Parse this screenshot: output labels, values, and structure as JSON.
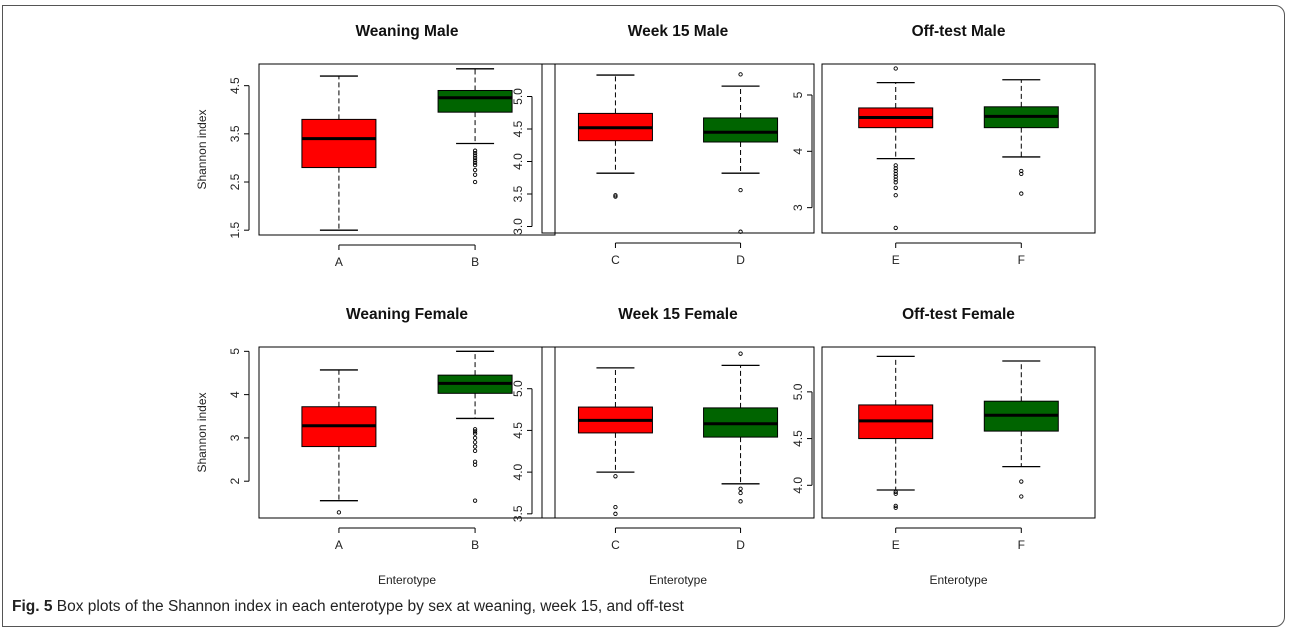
{
  "caption": {
    "label": "Fig. 5",
    "text": "Box plots of the Shannon index in each enterotype by sex at weaning, week 15, and off-test"
  },
  "colors": {
    "box_left": "#ff0000",
    "box_right": "#006400",
    "median": "#000000"
  },
  "chart_data": [
    {
      "type": "box",
      "title": "Weaning Male",
      "xlabel": "",
      "ylabel": "Shannon index",
      "ylim": [
        1.4,
        4.95
      ],
      "yticks": [
        1.5,
        2.5,
        3.5,
        4.5
      ],
      "categories": [
        "A",
        "B"
      ],
      "boxes": [
        {
          "category": "A",
          "whisker_low": 1.5,
          "q1": 2.8,
          "median": 3.4,
          "q3": 3.8,
          "whisker_high": 4.7,
          "outliers": []
        },
        {
          "category": "B",
          "whisker_low": 3.3,
          "q1": 3.95,
          "median": 4.25,
          "q3": 4.4,
          "whisker_high": 4.85,
          "outliers": [
            3.15,
            3.1,
            3.05,
            3.0,
            2.95,
            2.9,
            2.85,
            2.75,
            2.65,
            2.5
          ]
        }
      ]
    },
    {
      "type": "box",
      "title": "Week 15 Male",
      "xlabel": "",
      "ylabel": "",
      "ylim": [
        2.9,
        5.5
      ],
      "yticks": [
        3.0,
        3.5,
        4.0,
        4.5,
        5.0
      ],
      "categories": [
        "C",
        "D"
      ],
      "boxes": [
        {
          "category": "C",
          "whisker_low": 3.82,
          "q1": 4.32,
          "median": 4.52,
          "q3": 4.74,
          "whisker_high": 5.33,
          "outliers": [
            3.48,
            3.46
          ]
        },
        {
          "category": "D",
          "whisker_low": 3.82,
          "q1": 4.3,
          "median": 4.45,
          "q3": 4.67,
          "whisker_high": 5.16,
          "outliers": [
            5.34,
            3.56,
            2.92
          ]
        }
      ]
    },
    {
      "type": "box",
      "title": "Off-test Male",
      "xlabel": "",
      "ylabel": "",
      "ylim": [
        2.55,
        5.55
      ],
      "yticks": [
        3.0,
        4.0,
        5.0
      ],
      "categories": [
        "E",
        "F"
      ],
      "boxes": [
        {
          "category": "E",
          "whisker_low": 3.87,
          "q1": 4.42,
          "median": 4.6,
          "q3": 4.77,
          "whisker_high": 5.22,
          "outliers": [
            5.47,
            3.75,
            3.7,
            3.65,
            3.6,
            3.55,
            3.5,
            3.45,
            3.35,
            3.22,
            2.64
          ]
        },
        {
          "category": "F",
          "whisker_low": 3.9,
          "q1": 4.42,
          "median": 4.62,
          "q3": 4.79,
          "whisker_high": 5.27,
          "outliers": [
            3.65,
            3.6,
            3.25
          ]
        }
      ]
    },
    {
      "type": "box",
      "title": "Weaning Female",
      "xlabel": "Enterotype",
      "ylabel": "Shannon index",
      "ylim": [
        1.15,
        5.1
      ],
      "yticks": [
        2,
        3,
        4,
        5
      ],
      "categories": [
        "A",
        "B"
      ],
      "boxes": [
        {
          "category": "A",
          "whisker_low": 1.55,
          "q1": 2.8,
          "median": 3.28,
          "q3": 3.72,
          "whisker_high": 4.57,
          "outliers": [
            1.28
          ]
        },
        {
          "category": "B",
          "whisker_low": 3.45,
          "q1": 4.03,
          "median": 4.26,
          "q3": 4.45,
          "whisker_high": 5.0,
          "outliers": [
            3.2,
            3.15,
            3.1,
            3.0,
            2.9,
            2.8,
            2.7,
            2.45,
            2.38,
            1.55
          ]
        }
      ]
    },
    {
      "type": "box",
      "title": "Week 15 Female",
      "xlabel": "Enterotype",
      "ylabel": "",
      "ylim": [
        3.45,
        5.5
      ],
      "yticks": [
        3.5,
        4.0,
        4.5,
        5.0
      ],
      "categories": [
        "C",
        "D"
      ],
      "boxes": [
        {
          "category": "C",
          "whisker_low": 4.0,
          "q1": 4.47,
          "median": 4.62,
          "q3": 4.78,
          "whisker_high": 5.25,
          "outliers": [
            3.95,
            3.58,
            3.5
          ]
        },
        {
          "category": "D",
          "whisker_low": 3.86,
          "q1": 4.42,
          "median": 4.58,
          "q3": 4.77,
          "whisker_high": 5.28,
          "outliers": [
            5.42,
            3.8,
            3.75,
            3.65
          ]
        }
      ]
    },
    {
      "type": "box",
      "title": "Off-test Female",
      "xlabel": "Enterotype",
      "ylabel": "",
      "ylim": [
        3.65,
        5.48
      ],
      "yticks": [
        4.0,
        4.5,
        5.0
      ],
      "categories": [
        "E",
        "F"
      ],
      "boxes": [
        {
          "category": "E",
          "whisker_low": 3.95,
          "q1": 4.5,
          "median": 4.69,
          "q3": 4.86,
          "whisker_high": 5.38,
          "outliers": [
            3.93,
            3.91,
            3.78,
            3.76
          ]
        },
        {
          "category": "F",
          "whisker_low": 4.2,
          "q1": 4.58,
          "median": 4.75,
          "q3": 4.9,
          "whisker_high": 5.33,
          "outliers": [
            4.04,
            3.88
          ]
        }
      ]
    }
  ]
}
